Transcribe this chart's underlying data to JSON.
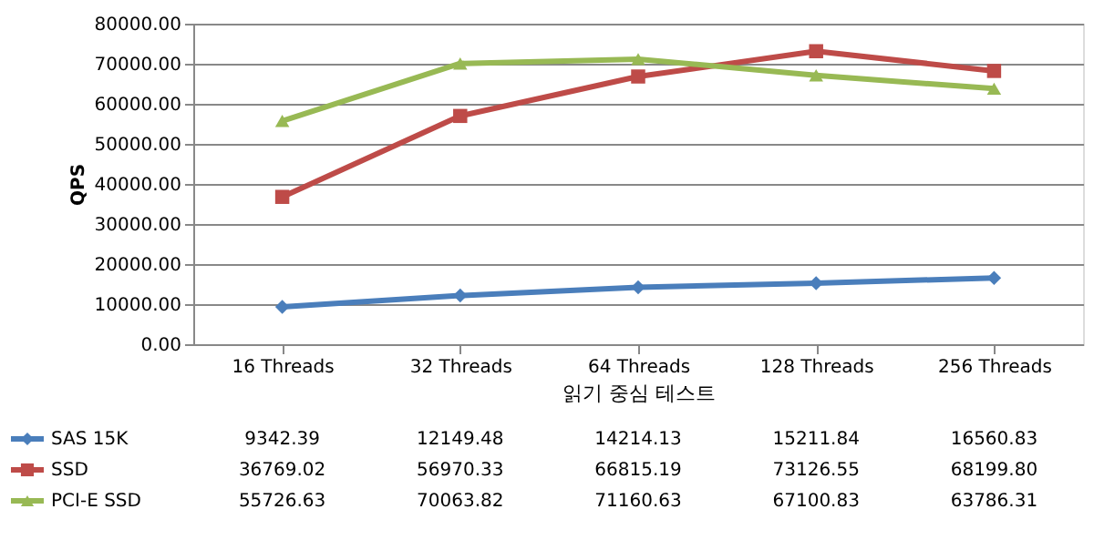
{
  "chart_data": {
    "type": "line",
    "xlabel": "읽기 중심 테스트",
    "ylabel": "QPS",
    "categories": [
      "16 Threads",
      "32 Threads",
      "64 Threads",
      "128 Threads",
      "256 Threads"
    ],
    "series": [
      {
        "name": "SAS 15K",
        "color": "#4a7ebb",
        "marker": "diamond",
        "values": [
          9342.39,
          12149.48,
          14214.13,
          15211.84,
          16560.83
        ],
        "value_labels": [
          "9342.39",
          "12149.48",
          "14214.13",
          "15211.84",
          "16560.83"
        ]
      },
      {
        "name": "SSD",
        "color": "#be4b48",
        "marker": "square",
        "values": [
          36769.02,
          56970.33,
          66815.19,
          73126.55,
          68199.8
        ],
        "value_labels": [
          "36769.02",
          "56970.33",
          "66815.19",
          "73126.55",
          "68199.80"
        ]
      },
      {
        "name": "PCI-E SSD",
        "color": "#98b954",
        "marker": "triangle",
        "values": [
          55726.63,
          70063.82,
          71160.63,
          67100.83,
          63786.31
        ],
        "value_labels": [
          "55726.63",
          "70063.82",
          "71160.63",
          "67100.83",
          "63786.31"
        ]
      }
    ],
    "ylim": [
      0,
      80000
    ],
    "yticks": [
      {
        "value": 0,
        "label": "0.00"
      },
      {
        "value": 10000,
        "label": "10000.00"
      },
      {
        "value": 20000,
        "label": "20000.00"
      },
      {
        "value": 30000,
        "label": "30000.00"
      },
      {
        "value": 40000,
        "label": "40000.00"
      },
      {
        "value": 50000,
        "label": "50000.00"
      },
      {
        "value": 60000,
        "label": "60000.00"
      },
      {
        "value": 70000,
        "label": "70000.00"
      },
      {
        "value": 80000,
        "label": "80000.00"
      }
    ],
    "grid": "y",
    "legend": "bottom",
    "line_style": "solid"
  }
}
